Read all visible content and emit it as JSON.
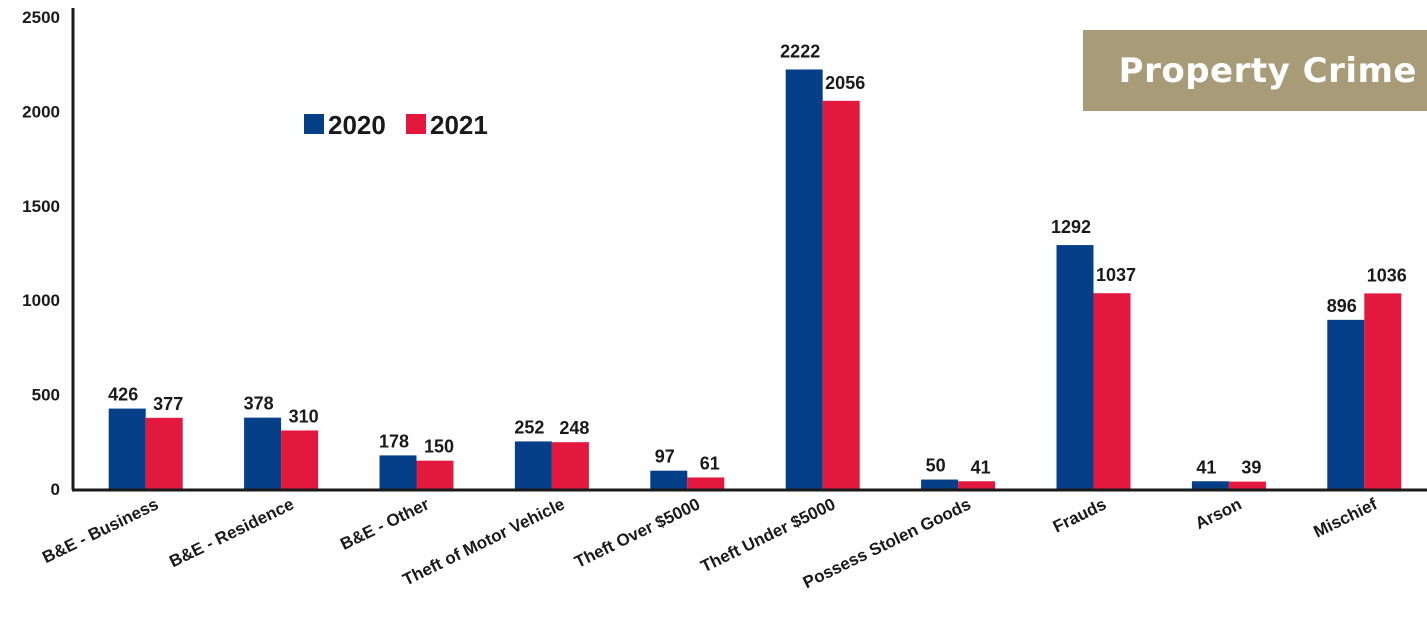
{
  "chart_data": {
    "type": "bar",
    "title": "Property Crime",
    "categories": [
      "B&E - Business",
      "B&E - Residence",
      "B&E - Other",
      "Theft of Motor Vehicle",
      "Theft Over $5000",
      "Theft Under $5000",
      "Possess Stolen Goods",
      "Frauds",
      "Arson",
      "Mischief"
    ],
    "series": [
      {
        "name": "2020",
        "color": "#043f88",
        "values": [
          426,
          378,
          178,
          252,
          97,
          2222,
          50,
          1292,
          41,
          896
        ]
      },
      {
        "name": "2021",
        "color": "#e3183f",
        "values": [
          377,
          310,
          150,
          248,
          61,
          2056,
          41,
          1037,
          39,
          1036
        ]
      }
    ],
    "ylim": [
      0,
      2500
    ],
    "yticks": [
      0,
      500,
      1000,
      1500,
      2000,
      2500
    ],
    "xlabel": "",
    "ylabel": "",
    "legend": "top-left",
    "grid": false
  },
  "title_box": {
    "text": "Property Crime",
    "color": "#a89c78"
  }
}
